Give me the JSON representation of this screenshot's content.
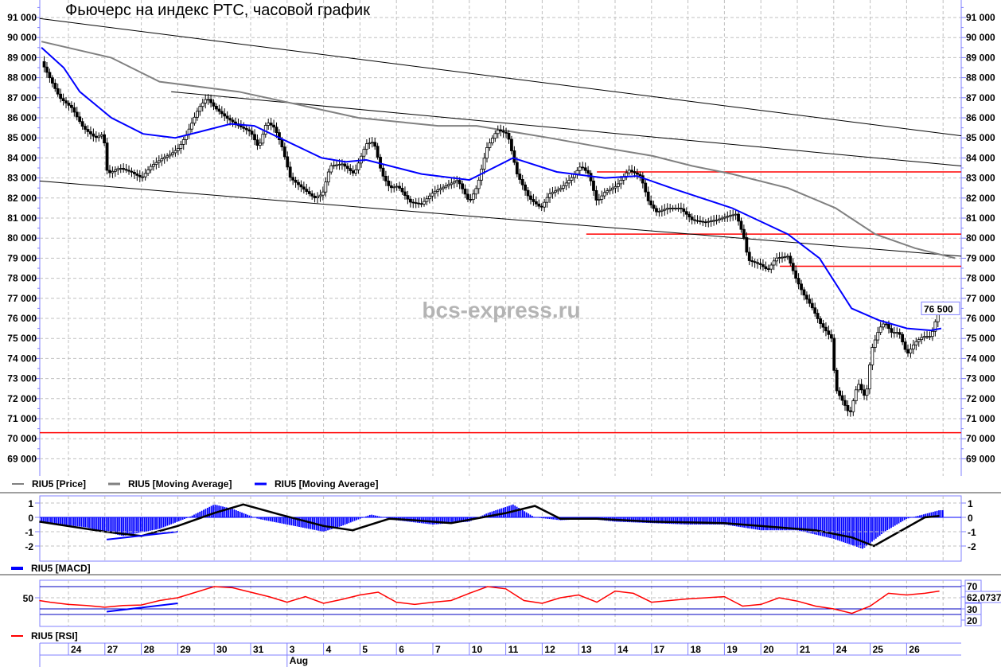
{
  "chart_data": {
    "type": "candlestick",
    "title": "Фьючерс на индекс РТС, часовой график",
    "watermark": "bcs-express.ru",
    "x_unit": "trading day index (0 = Jul 24)",
    "x_range": [
      -0.79,
      24.5
    ],
    "x_ticks": [
      "24",
      "27",
      "28",
      "29",
      "30",
      "31",
      "3",
      "4",
      "5",
      "6",
      "7",
      "10",
      "11",
      "12",
      "13",
      "14",
      "17",
      "18",
      "19",
      "20",
      "21",
      "24",
      "25",
      "26"
    ],
    "month_label": {
      "text": "Aug",
      "tick_index": 6
    },
    "ylim": [
      68500,
      91800
    ],
    "y_ticks": [
      "69 000",
      "70 000",
      "71 000",
      "72 000",
      "73 000",
      "74 000",
      "75 000",
      "76 000",
      "77 000",
      "78 000",
      "79 000",
      "80 000",
      "81 000",
      "82 000",
      "83 000",
      "84 000",
      "85 000",
      "86 000",
      "87 000",
      "88 000",
      "89 000",
      "90 000",
      "91 000"
    ],
    "last_price_label": "76 500",
    "price_close_path": [
      [
        -0.74,
        88800
      ],
      [
        -0.46,
        87800
      ],
      [
        -0.24,
        87000
      ],
      [
        0.09,
        86500
      ],
      [
        0.41,
        85500
      ],
      [
        0.74,
        85000
      ],
      [
        0.96,
        85200
      ],
      [
        1.07,
        83200
      ],
      [
        1.4,
        83500
      ],
      [
        1.72,
        83300
      ],
      [
        2.01,
        83000
      ],
      [
        2.27,
        83600
      ],
      [
        2.6,
        84000
      ],
      [
        2.82,
        84200
      ],
      [
        3.03,
        84500
      ],
      [
        3.25,
        85200
      ],
      [
        3.58,
        86500
      ],
      [
        3.8,
        87000
      ],
      [
        4.02,
        86500
      ],
      [
        4.34,
        86000
      ],
      [
        4.67,
        85600
      ],
      [
        5.0,
        85300
      ],
      [
        5.22,
        84500
      ],
      [
        5.44,
        85800
      ],
      [
        5.66,
        85500
      ],
      [
        5.87,
        84500
      ],
      [
        6.09,
        83000
      ],
      [
        6.42,
        82500
      ],
      [
        6.75,
        82000
      ],
      [
        6.97,
        82200
      ],
      [
        7.18,
        83600
      ],
      [
        7.51,
        83700
      ],
      [
        7.84,
        83200
      ],
      [
        8.17,
        84700
      ],
      [
        8.38,
        84800
      ],
      [
        8.6,
        83200
      ],
      [
        8.82,
        82500
      ],
      [
        9.04,
        82600
      ],
      [
        9.37,
        81800
      ],
      [
        9.69,
        81700
      ],
      [
        10.02,
        82300
      ],
      [
        10.35,
        82600
      ],
      [
        10.68,
        82900
      ],
      [
        11.0,
        81800
      ],
      [
        11.22,
        82600
      ],
      [
        11.48,
        84500
      ],
      [
        11.77,
        85400
      ],
      [
        12.05,
        85200
      ],
      [
        12.31,
        83200
      ],
      [
        12.64,
        82000
      ],
      [
        12.97,
        81500
      ],
      [
        13.19,
        82200
      ],
      [
        13.52,
        82500
      ],
      [
        13.8,
        83000
      ],
      [
        14.06,
        83600
      ],
      [
        14.28,
        83200
      ],
      [
        14.5,
        81800
      ],
      [
        14.72,
        82300
      ],
      [
        15.04,
        82600
      ],
      [
        15.37,
        83400
      ],
      [
        15.7,
        83100
      ],
      [
        15.92,
        81800
      ],
      [
        16.14,
        81300
      ],
      [
        16.46,
        81500
      ],
      [
        16.79,
        81500
      ],
      [
        17.12,
        80900
      ],
      [
        17.45,
        80800
      ],
      [
        17.77,
        80900
      ],
      [
        18.1,
        81100
      ],
      [
        18.32,
        81200
      ],
      [
        18.54,
        80000
      ],
      [
        18.65,
        78900
      ],
      [
        18.97,
        78700
      ],
      [
        19.19,
        78400
      ],
      [
        19.41,
        79000
      ],
      [
        19.74,
        79100
      ],
      [
        19.96,
        78000
      ],
      [
        20.17,
        77200
      ],
      [
        20.39,
        76600
      ],
      [
        20.61,
        75800
      ],
      [
        20.94,
        75000
      ],
      [
        21.05,
        72500
      ],
      [
        21.27,
        71800
      ],
      [
        21.44,
        71200
      ],
      [
        21.66,
        72800
      ],
      [
        21.88,
        72000
      ],
      [
        22.03,
        74400
      ],
      [
        22.25,
        75500
      ],
      [
        22.4,
        75800
      ],
      [
        22.58,
        75300
      ],
      [
        22.79,
        75300
      ],
      [
        23.01,
        74200
      ],
      [
        23.23,
        74800
      ],
      [
        23.45,
        75100
      ],
      [
        23.67,
        75100
      ],
      [
        23.89,
        76500
      ]
    ],
    "series": [
      {
        "name": "RIU5 [Price]",
        "color": "#000000"
      },
      {
        "name": "RIU5 [Moving Average]",
        "color": "#808080",
        "values": [
          [
            -0.74,
            89800
          ],
          [
            1.17,
            89000
          ],
          [
            2.5,
            87800
          ],
          [
            3.8,
            87500
          ],
          [
            4.67,
            87300
          ],
          [
            6.2,
            86700
          ],
          [
            7.95,
            86000
          ],
          [
            10.14,
            85600
          ],
          [
            11.2,
            85600
          ],
          [
            13.19,
            85000
          ],
          [
            14.72,
            84500
          ],
          [
            16.03,
            84100
          ],
          [
            17.12,
            83600
          ],
          [
            18.21,
            83200
          ],
          [
            19.74,
            82500
          ],
          [
            21.05,
            81500
          ],
          [
            22.14,
            80200
          ],
          [
            23.23,
            79500
          ],
          [
            24.33,
            79000
          ]
        ]
      },
      {
        "name": "RIU5 [Moving Average]",
        "color": "#0000ff",
        "values": [
          [
            -0.74,
            89500
          ],
          [
            -0.13,
            88500
          ],
          [
            0.31,
            87300
          ],
          [
            1.18,
            86000
          ],
          [
            2.05,
            85200
          ],
          [
            2.93,
            85000
          ],
          [
            3.6,
            85300
          ],
          [
            4.45,
            85700
          ],
          [
            5.1,
            85600
          ],
          [
            6.95,
            84000
          ],
          [
            7.6,
            83800
          ],
          [
            8.17,
            83900
          ],
          [
            9.69,
            83200
          ],
          [
            11.0,
            82900
          ],
          [
            12.2,
            84000
          ],
          [
            13.4,
            83300
          ],
          [
            14.72,
            83000
          ],
          [
            15.6,
            83100
          ],
          [
            16.7,
            82400
          ],
          [
            18.21,
            81500
          ],
          [
            19.74,
            80200
          ],
          [
            20.61,
            79000
          ],
          [
            21.49,
            76500
          ],
          [
            22.25,
            75900
          ],
          [
            23.01,
            75500
          ],
          [
            23.67,
            75400
          ],
          [
            23.95,
            75500
          ]
        ]
      }
    ],
    "trend_lines": [
      {
        "from": [
          -0.79,
          90950
        ],
        "to": [
          24.5,
          85100
        ],
        "color": "#000000"
      },
      {
        "from": [
          2.82,
          87300
        ],
        "to": [
          24.5,
          83600
        ],
        "color": "#000000"
      },
      {
        "from": [
          -0.79,
          82850
        ],
        "to": [
          24.5,
          79100
        ],
        "color": "#000000"
      }
    ],
    "levels": [
      {
        "price": 83300,
        "from": 14.5,
        "color": "#ff0000"
      },
      {
        "price": 80200,
        "from": 14.21,
        "color": "#ff0000"
      },
      {
        "price": 78600,
        "from": 19.52,
        "color": "#ff0000"
      },
      {
        "price": 70300,
        "from": -0.79,
        "color": "#ff0000"
      }
    ],
    "macd": {
      "legend": "RIU5 [MACD]",
      "ylim": [
        -2.6,
        1.3
      ],
      "y_ticks": [
        "1",
        "0",
        "-1",
        "-2"
      ],
      "histogram": [
        [
          -0.8,
          -0.3
        ],
        [
          0.5,
          -0.7
        ],
        [
          1.5,
          -1.3
        ],
        [
          2.5,
          -0.8
        ],
        [
          3.3,
          0
        ],
        [
          4,
          0.9
        ],
        [
          4.5,
          0.6
        ],
        [
          5.2,
          -0.1
        ],
        [
          6,
          -0.5
        ],
        [
          7,
          -1.0
        ],
        [
          7.5,
          -0.6
        ],
        [
          8.3,
          0.2
        ],
        [
          9,
          -0.2
        ],
        [
          10,
          -0.5
        ],
        [
          11,
          -0.3
        ],
        [
          11.5,
          0.3
        ],
        [
          12.2,
          0.9
        ],
        [
          12.8,
          0
        ],
        [
          13.5,
          -0.2
        ],
        [
          14.3,
          -0.1
        ],
        [
          15,
          -0.3
        ],
        [
          16,
          -0.4
        ],
        [
          17,
          -0.5
        ],
        [
          18,
          -0.5
        ],
        [
          19,
          -0.9
        ],
        [
          20,
          -0.9
        ],
        [
          21,
          -1.5
        ],
        [
          21.8,
          -2.2
        ],
        [
          22.4,
          -1.0
        ],
        [
          23,
          -0.1
        ],
        [
          23.9,
          0.5
        ]
      ],
      "signal": [
        [
          -0.8,
          -0.3
        ],
        [
          1,
          -1.0
        ],
        [
          2,
          -1.3
        ],
        [
          3,
          -0.6
        ],
        [
          4,
          0.3
        ],
        [
          4.8,
          0.9
        ],
        [
          5.8,
          0.2
        ],
        [
          7,
          -0.6
        ],
        [
          7.8,
          -0.9
        ],
        [
          8.8,
          -0.1
        ],
        [
          9.5,
          -0.2
        ],
        [
          10.5,
          -0.4
        ],
        [
          12,
          0.3
        ],
        [
          12.8,
          0.8
        ],
        [
          13.5,
          -0.1
        ],
        [
          14.5,
          -0.1
        ],
        [
          16,
          -0.3
        ],
        [
          18,
          -0.4
        ],
        [
          19.5,
          -0.7
        ],
        [
          20.5,
          -0.9
        ],
        [
          21.5,
          -1.4
        ],
        [
          22.1,
          -2.0
        ],
        [
          22.8,
          -1.0
        ],
        [
          23.5,
          0
        ],
        [
          23.9,
          0.1
        ]
      ],
      "trend_line": {
        "from": [
          1.05,
          -1.55
        ],
        "to": [
          3.0,
          -1.0
        ]
      }
    },
    "rsi": {
      "legend": "RIU5 [RSI]",
      "y_ticks": [
        "50"
      ],
      "levels": [
        70,
        30,
        20
      ],
      "right_labels": [
        "70",
        "62,0737",
        "30",
        "20"
      ],
      "last_value": 62.0737,
      "values": [
        [
          -0.8,
          45
        ],
        [
          -0.5,
          42
        ],
        [
          0,
          38
        ],
        [
          0.5,
          36
        ],
        [
          1,
          33
        ],
        [
          1.5,
          36
        ],
        [
          2,
          37
        ],
        [
          2.5,
          45
        ],
        [
          3,
          50
        ],
        [
          3.5,
          60
        ],
        [
          4,
          70
        ],
        [
          4.5,
          68
        ],
        [
          5,
          60
        ],
        [
          5.5,
          52
        ],
        [
          6,
          42
        ],
        [
          6.5,
          52
        ],
        [
          7,
          40
        ],
        [
          7.5,
          47
        ],
        [
          8,
          55
        ],
        [
          8.5,
          60
        ],
        [
          9,
          42
        ],
        [
          9.5,
          38
        ],
        [
          10,
          42
        ],
        [
          10.5,
          45
        ],
        [
          11,
          58
        ],
        [
          11.5,
          70
        ],
        [
          12,
          66
        ],
        [
          12.5,
          45
        ],
        [
          13,
          40
        ],
        [
          13.5,
          50
        ],
        [
          14,
          55
        ],
        [
          14.5,
          42
        ],
        [
          15,
          62
        ],
        [
          15.5,
          58
        ],
        [
          16,
          42
        ],
        [
          17,
          48
        ],
        [
          18,
          52
        ],
        [
          18.5,
          35
        ],
        [
          19,
          38
        ],
        [
          19.5,
          50
        ],
        [
          20,
          44
        ],
        [
          20.5,
          35
        ],
        [
          21,
          30
        ],
        [
          21.5,
          22
        ],
        [
          22,
          35
        ],
        [
          22.5,
          58
        ],
        [
          23,
          55
        ],
        [
          23.5,
          58
        ],
        [
          23.9,
          62
        ]
      ],
      "trend_line": {
        "from": [
          1.05,
          25
        ],
        "to": [
          3.0,
          40
        ]
      }
    }
  }
}
